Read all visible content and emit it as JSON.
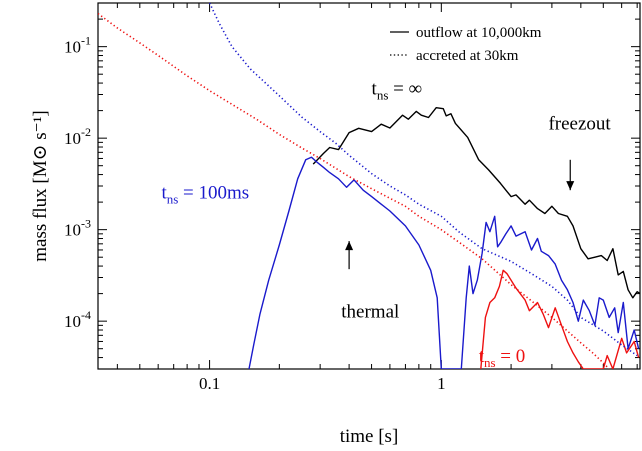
{
  "chart_data": {
    "type": "line",
    "xlabel": "time [s]",
    "ylabel": "mass flux [M⊙ s⁻¹]",
    "xscale": "log",
    "yscale": "log",
    "xlim": [
      0.033,
      7.2
    ],
    "ylim": [
      3e-05,
      0.3
    ],
    "grid": false,
    "legend_position": "top-right",
    "x_ticks": [
      {
        "value": 0.1,
        "label": "0.1"
      },
      {
        "value": 1,
        "label": "1"
      }
    ],
    "y_ticks": [
      {
        "value": 0.0001,
        "label_base": "10",
        "label_exp": "-4"
      },
      {
        "value": 0.001,
        "label_base": "10",
        "label_exp": "-3"
      },
      {
        "value": 0.01,
        "label_base": "10",
        "label_exp": "-2"
      },
      {
        "value": 0.1,
        "label_base": "10",
        "label_exp": "-1"
      }
    ],
    "legend": [
      {
        "label": "outflow at 10,000km",
        "style": "solid"
      },
      {
        "label": "accreted at 30km",
        "style": "dotted"
      }
    ],
    "annotations": [
      {
        "id": "tinf",
        "base": "t",
        "sub": "ns",
        "suffix": " = ∞",
        "color": "#000000",
        "x": 0.5,
        "y": 0.03
      },
      {
        "id": "t100",
        "base": "t",
        "sub": "ns",
        "suffix": " = 100ms",
        "color": "#1a1acc",
        "x": 0.062,
        "y": 0.0022
      },
      {
        "id": "t0",
        "base": "t",
        "sub": "ns",
        "suffix": " = 0",
        "color": "#ee1111",
        "x": 1.45,
        "y": 3.6e-05
      },
      {
        "id": "freezout",
        "text": "freezout",
        "color": "#000000",
        "x": 2.9,
        "y": 0.0125
      },
      {
        "id": "thermal",
        "text": "thermal",
        "color": "#000000",
        "x": 0.37,
        "y": 0.00011
      }
    ],
    "arrows": [
      {
        "x": 3.6,
        "y_from": 0.0058,
        "y_to": 0.0027,
        "direction": "down"
      },
      {
        "x": 0.4,
        "y_from": 0.00037,
        "y_to": 0.00075,
        "direction": "up"
      }
    ],
    "series": [
      {
        "id": "black-outflow",
        "style": "solid",
        "color": "#000000",
        "points": [
          [
            0.28,
            0.0052
          ],
          [
            0.31,
            0.0068
          ],
          [
            0.33,
            0.0079
          ],
          [
            0.36,
            0.0075
          ],
          [
            0.4,
            0.0115
          ],
          [
            0.44,
            0.0128
          ],
          [
            0.5,
            0.0118
          ],
          [
            0.55,
            0.0142
          ],
          [
            0.6,
            0.0129
          ],
          [
            0.68,
            0.0178
          ],
          [
            0.72,
            0.0161
          ],
          [
            0.78,
            0.0196
          ],
          [
            0.82,
            0.0178
          ],
          [
            0.88,
            0.0168
          ],
          [
            0.95,
            0.0215
          ],
          [
            1.02,
            0.021
          ],
          [
            1.05,
            0.0175
          ],
          [
            1.1,
            0.0185
          ],
          [
            1.15,
            0.0145
          ],
          [
            1.3,
            0.0102
          ],
          [
            1.45,
            0.0058
          ],
          [
            1.6,
            0.0045
          ],
          [
            1.8,
            0.0032
          ],
          [
            1.9,
            0.0027
          ],
          [
            2.0,
            0.0023
          ],
          [
            2.1,
            0.0024
          ],
          [
            2.3,
            0.0019
          ],
          [
            2.4,
            0.0021
          ],
          [
            2.6,
            0.0017
          ],
          [
            2.8,
            0.0015
          ],
          [
            3.0,
            0.0018
          ],
          [
            3.2,
            0.0015
          ],
          [
            3.5,
            0.0014
          ],
          [
            3.7,
            0.0011
          ],
          [
            4.0,
            0.00062
          ],
          [
            4.3,
            0.00048
          ],
          [
            4.6,
            0.0005
          ],
          [
            4.9,
            0.00052
          ],
          [
            5.2,
            0.00046
          ],
          [
            5.5,
            0.00062
          ],
          [
            5.8,
            0.00032
          ],
          [
            6.1,
            0.00035
          ],
          [
            6.4,
            0.00022
          ],
          [
            6.7,
            0.00018
          ],
          [
            7.0,
            0.00021
          ],
          [
            7.2,
            0.0002
          ]
        ]
      },
      {
        "id": "blue-outflow",
        "style": "solid",
        "color": "#1a1acc",
        "points": [
          [
            0.148,
            3e-05
          ],
          [
            0.155,
            5.5e-05
          ],
          [
            0.165,
            0.00012
          ],
          [
            0.18,
            0.00028
          ],
          [
            0.2,
            0.00068
          ],
          [
            0.22,
            0.0016
          ],
          [
            0.24,
            0.0036
          ],
          [
            0.26,
            0.0058
          ],
          [
            0.275,
            0.0062
          ],
          [
            0.29,
            0.0055
          ],
          [
            0.31,
            0.0048
          ],
          [
            0.33,
            0.0042
          ],
          [
            0.36,
            0.0036
          ],
          [
            0.39,
            0.0029
          ],
          [
            0.42,
            0.0035
          ],
          [
            0.46,
            0.0027
          ],
          [
            0.5,
            0.0023
          ],
          [
            0.55,
            0.0019
          ],
          [
            0.6,
            0.0016
          ],
          [
            0.7,
            0.0011
          ],
          [
            0.8,
            0.00068
          ],
          [
            0.9,
            0.00036
          ],
          [
            0.96,
            0.00018
          ],
          [
            1.0,
            3e-05
          ],
          [
            1.22,
            3e-05
          ],
          [
            1.28,
            0.00018
          ],
          [
            1.32,
            0.0004
          ],
          [
            1.37,
            0.0002
          ],
          [
            1.43,
            0.00028
          ],
          [
            1.5,
            0.00055
          ],
          [
            1.56,
            0.0012
          ],
          [
            1.62,
            0.00095
          ],
          [
            1.7,
            0.0014
          ],
          [
            1.75,
            0.00065
          ],
          [
            1.8,
            0.00072
          ],
          [
            1.9,
            0.0009
          ],
          [
            2.0,
            0.0011
          ],
          [
            2.1,
            0.00085
          ],
          [
            2.3,
            0.00095
          ],
          [
            2.45,
            0.0006
          ],
          [
            2.6,
            0.0008
          ],
          [
            2.7,
            0.00058
          ],
          [
            2.9,
            0.00052
          ],
          [
            3.1,
            0.00042
          ],
          [
            3.3,
            0.00028
          ],
          [
            3.5,
            0.00022
          ],
          [
            3.7,
            0.00016
          ],
          [
            3.9,
            0.0001
          ],
          [
            4.1,
            0.00017
          ],
          [
            4.35,
            0.00013
          ],
          [
            4.6,
            9e-05
          ],
          [
            4.8,
            0.00018
          ],
          [
            5.0,
            0.00017
          ],
          [
            5.3,
            0.00011
          ],
          [
            5.6,
            0.00014
          ],
          [
            5.8,
            7.5e-05
          ],
          [
            6.1,
            0.00016
          ],
          [
            6.4,
            5e-05
          ],
          [
            6.8,
            8e-05
          ],
          [
            7.1,
            5e-05
          ]
        ]
      },
      {
        "id": "red-outflow",
        "style": "solid",
        "color": "#ee1111",
        "points": [
          [
            1.48,
            3e-05
          ],
          [
            1.55,
            0.00011
          ],
          [
            1.62,
            0.00016
          ],
          [
            1.7,
            0.00018
          ],
          [
            1.78,
            0.00024
          ],
          [
            1.85,
            0.00036
          ],
          [
            1.92,
            0.00033
          ],
          [
            2.0,
            0.00028
          ],
          [
            2.1,
            0.00023
          ],
          [
            2.3,
            0.00017
          ],
          [
            2.4,
            0.00013
          ],
          [
            2.6,
            0.00016
          ],
          [
            2.75,
            0.00012
          ],
          [
            2.9,
            8.5e-05
          ],
          [
            3.1,
            0.00014
          ],
          [
            3.3,
            9e-05
          ],
          [
            3.5,
            6e-05
          ],
          [
            3.7,
            4.5e-05
          ],
          [
            3.9,
            3.6e-05
          ],
          [
            4.1,
            3e-05
          ],
          [
            5.0,
            3e-05
          ],
          [
            5.2,
            4.2e-05
          ],
          [
            5.5,
            3e-05
          ],
          [
            6.0,
            6.5e-05
          ],
          [
            6.3,
            4.5e-05
          ],
          [
            6.8,
            6e-05
          ],
          [
            7.1,
            4e-05
          ]
        ]
      },
      {
        "id": "blue-accreted",
        "style": "dotted",
        "color": "#1a1acc",
        "points": [
          [
            0.1,
            0.3
          ],
          [
            0.11,
            0.18
          ],
          [
            0.125,
            0.1
          ],
          [
            0.15,
            0.057
          ],
          [
            0.2,
            0.029
          ],
          [
            0.25,
            0.017
          ],
          [
            0.3,
            0.0118
          ],
          [
            0.35,
            0.0088
          ],
          [
            0.4,
            0.0065
          ],
          [
            0.5,
            0.0041
          ],
          [
            0.6,
            0.003
          ],
          [
            0.7,
            0.0024
          ],
          [
            0.8,
            0.0019
          ],
          [
            1.0,
            0.0014
          ],
          [
            1.2,
            0.00093
          ],
          [
            1.5,
            0.00062
          ],
          [
            2.0,
            0.00045
          ],
          [
            2.5,
            0.00032
          ],
          [
            3.0,
            0.00024
          ],
          [
            3.5,
            0.00017
          ],
          [
            4.0,
            0.00011
          ],
          [
            5.0,
            7.8e-05
          ],
          [
            6.0,
            5.5e-05
          ],
          [
            7.0,
            4.2e-05
          ]
        ]
      },
      {
        "id": "red-accreted",
        "style": "dotted",
        "color": "#ee1111",
        "points": [
          [
            0.033,
            0.23
          ],
          [
            0.04,
            0.16
          ],
          [
            0.05,
            0.11
          ],
          [
            0.06,
            0.08
          ],
          [
            0.08,
            0.048
          ],
          [
            0.1,
            0.033
          ],
          [
            0.13,
            0.022
          ],
          [
            0.16,
            0.016
          ],
          [
            0.2,
            0.011
          ],
          [
            0.25,
            0.0078
          ],
          [
            0.3,
            0.006
          ],
          [
            0.4,
            0.0038
          ],
          [
            0.5,
            0.0028
          ],
          [
            0.6,
            0.0022
          ],
          [
            0.7,
            0.0018
          ],
          [
            0.8,
            0.0014
          ],
          [
            1.0,
            0.001
          ],
          [
            1.2,
            0.00072
          ],
          [
            1.5,
            0.00048
          ],
          [
            2.0,
            0.00025
          ],
          [
            2.5,
            0.00016
          ],
          [
            3.0,
            0.00011
          ],
          [
            3.5,
            7.8e-05
          ],
          [
            4.0,
            5.8e-05
          ],
          [
            4.5,
            4.5e-05
          ],
          [
            5.0,
            3.5e-05
          ],
          [
            5.3,
            3e-05
          ]
        ]
      }
    ]
  }
}
